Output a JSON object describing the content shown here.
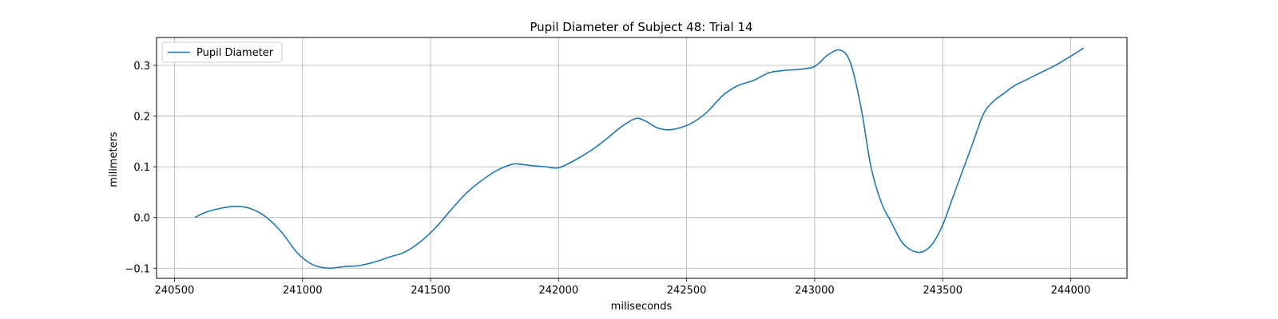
{
  "chart_data": {
    "type": "line",
    "title": "Pupil Diameter of Subject 48: Trial 14",
    "xlabel": "miliseconds",
    "ylabel": "milimeters",
    "xlim": [
      240430,
      244220
    ],
    "ylim": [
      -0.12,
      0.355
    ],
    "xticks": [
      240500,
      241000,
      241500,
      242000,
      242500,
      243000,
      243500,
      244000
    ],
    "yticks": [
      -0.1,
      0.0,
      0.1,
      0.2,
      0.3
    ],
    "ytick_labels": [
      "−0.1",
      "0.0",
      "0.1",
      "0.2",
      "0.3"
    ],
    "grid": true,
    "legend_position": "upper-left",
    "color": "#1f77b4",
    "series": [
      {
        "name": "Pupil Diameter",
        "x": [
          240580,
          240620,
          240680,
          240740,
          240800,
          240860,
          240920,
          240980,
          241040,
          241100,
          241160,
          241220,
          241280,
          241340,
          241400,
          241460,
          241520,
          241580,
          241640,
          241700,
          241760,
          241820,
          241850,
          241900,
          241950,
          242000,
          242060,
          242120,
          242180,
          242240,
          242300,
          242340,
          242380,
          242420,
          242460,
          242520,
          242580,
          242640,
          242700,
          242760,
          242820,
          242880,
          242940,
          243000,
          243050,
          243100,
          243140,
          243180,
          243220,
          243260,
          243300,
          243340,
          243380,
          243420,
          243460,
          243500,
          243540,
          243580,
          243620,
          243660,
          243700,
          243740,
          243780,
          243820,
          243880,
          243940,
          244000,
          244050
        ],
        "y": [
          0.0,
          0.01,
          0.018,
          0.022,
          0.017,
          0.0,
          -0.03,
          -0.07,
          -0.093,
          -0.1,
          -0.097,
          -0.095,
          -0.088,
          -0.078,
          -0.068,
          -0.048,
          -0.02,
          0.015,
          0.048,
          0.073,
          0.093,
          0.105,
          0.105,
          0.102,
          0.1,
          0.098,
          0.112,
          0.13,
          0.152,
          0.177,
          0.195,
          0.19,
          0.178,
          0.173,
          0.175,
          0.186,
          0.208,
          0.24,
          0.26,
          0.27,
          0.285,
          0.29,
          0.292,
          0.298,
          0.32,
          0.33,
          0.305,
          0.22,
          0.1,
          0.03,
          -0.01,
          -0.048,
          -0.065,
          -0.068,
          -0.052,
          -0.015,
          0.04,
          0.095,
          0.15,
          0.205,
          0.23,
          0.245,
          0.26,
          0.27,
          0.285,
          0.3,
          0.318,
          0.334
        ]
      }
    ]
  }
}
